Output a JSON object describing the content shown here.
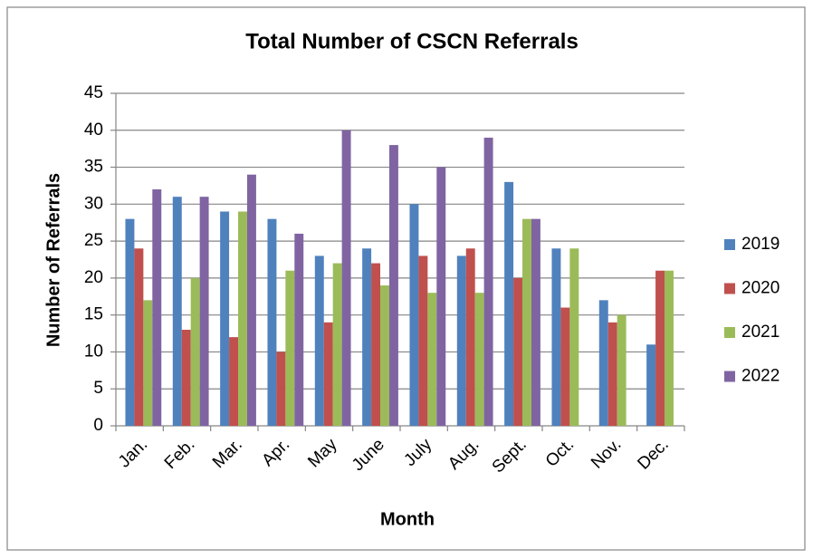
{
  "chart_data": {
    "type": "bar",
    "title": "Total Number of CSCN Referrals",
    "x_label": "Month",
    "y_label": "Number of Referrals",
    "categories": [
      "Jan.",
      "Feb.",
      "Mar.",
      "Apr.",
      "May",
      "June",
      "July",
      "Aug.",
      "Sept.",
      "Oct.",
      "Nov.",
      "Dec."
    ],
    "series": [
      {
        "name": "2019",
        "color": "#4f81bd",
        "values": [
          28,
          31,
          29,
          28,
          23,
          24,
          30,
          23,
          33,
          24,
          17,
          11
        ]
      },
      {
        "name": "2020",
        "color": "#c0504d",
        "values": [
          24,
          13,
          12,
          10,
          14,
          22,
          23,
          24,
          20,
          16,
          14,
          21
        ]
      },
      {
        "name": "2021",
        "color": "#9bbb59",
        "values": [
          17,
          20,
          29,
          21,
          22,
          19,
          18,
          18,
          28,
          24,
          15,
          21
        ]
      },
      {
        "name": "2022",
        "color": "#8064a2",
        "values": [
          32,
          31,
          34,
          26,
          40,
          38,
          35,
          39,
          28,
          null,
          null,
          null
        ]
      }
    ],
    "ylim": [
      0,
      45
    ],
    "yticks": [
      0,
      5,
      10,
      15,
      20,
      25,
      30,
      35,
      40,
      45
    ],
    "grid": true,
    "legend": "right"
  }
}
